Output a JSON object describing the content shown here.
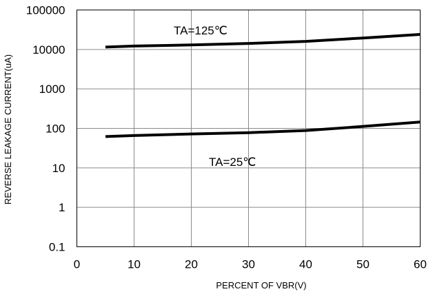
{
  "chart_data": {
    "type": "line",
    "xlabel": "PERCENT OF VBR(V)",
    "ylabel": "REVERSE LEAKAGE CURRENT(uA)",
    "xlim": [
      0,
      60
    ],
    "ylim": [
      0.1,
      100000
    ],
    "y_scale": "log",
    "grid": true,
    "x_ticks": [
      "0",
      "10",
      "20",
      "30",
      "40",
      "50",
      "60"
    ],
    "y_ticks": [
      "0.1",
      "1",
      "10",
      "100",
      "1000",
      "10000",
      "100000"
    ],
    "series": [
      {
        "name": "TA=125℃",
        "x": [
          5,
          10,
          20,
          30,
          40,
          50,
          60
        ],
        "y": [
          11500,
          12200,
          13000,
          14200,
          16000,
          19500,
          24000
        ]
      },
      {
        "name": "TA=25℃",
        "x": [
          5,
          10,
          20,
          30,
          40,
          50,
          60
        ],
        "y": [
          62,
          66,
          72,
          78,
          88,
          112,
          145
        ]
      }
    ]
  }
}
